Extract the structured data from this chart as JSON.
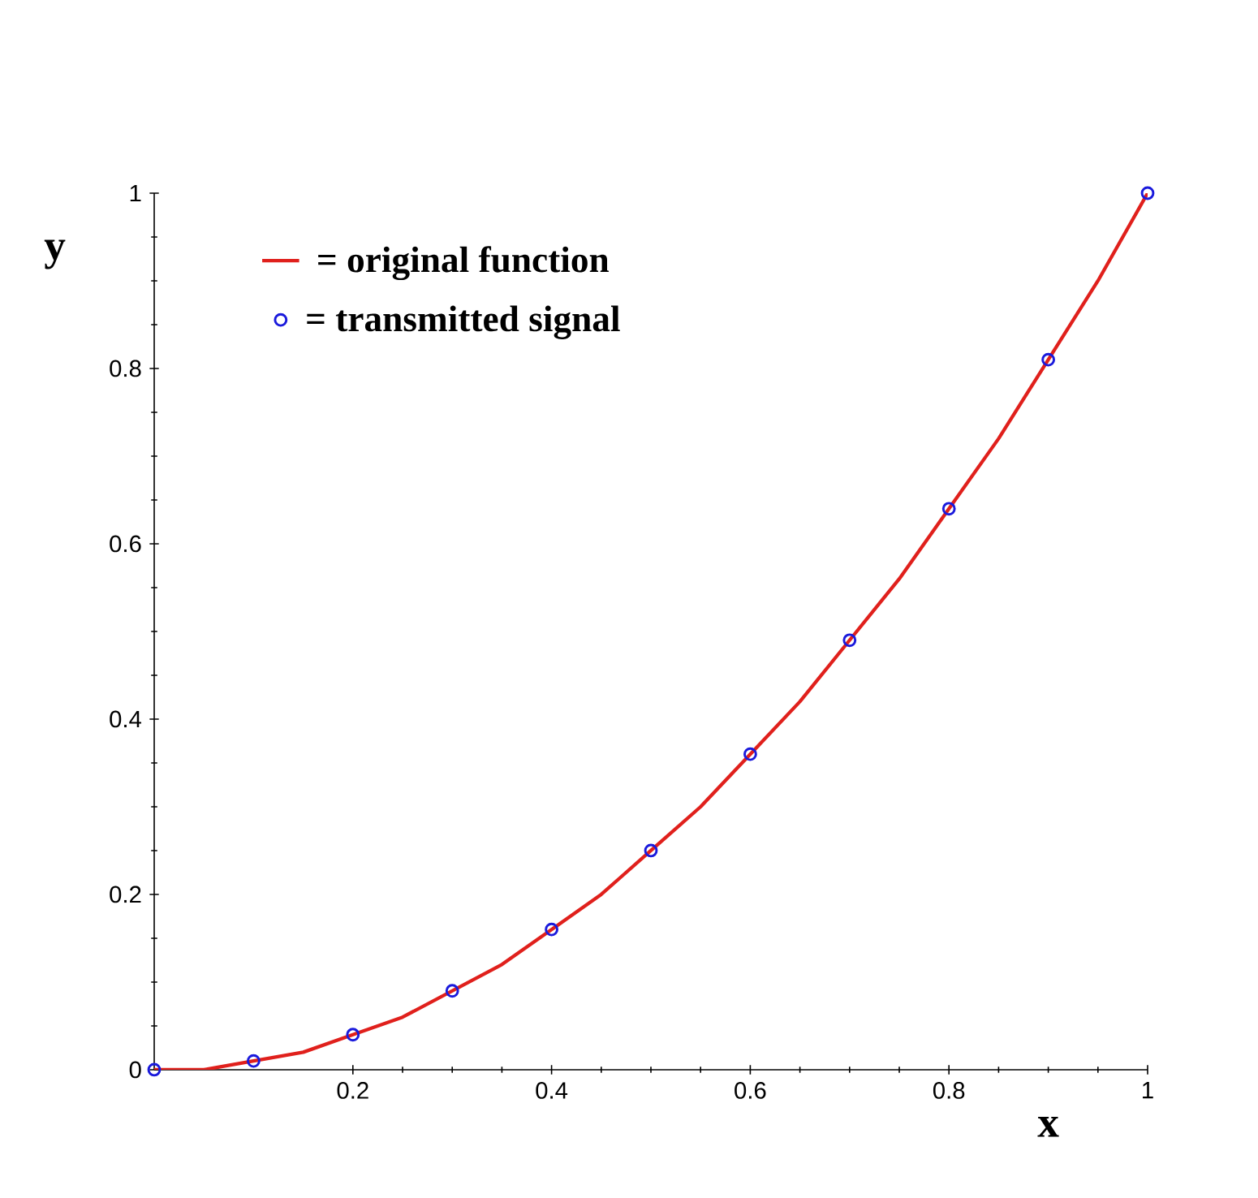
{
  "chart_data": {
    "type": "line",
    "xlabel": "x",
    "ylabel": "y",
    "xlim": [
      0,
      1
    ],
    "ylim": [
      0,
      1
    ],
    "xticks": [
      0.2,
      0.4,
      0.6,
      0.8,
      1
    ],
    "yticks": [
      0,
      0.2,
      0.4,
      0.6,
      0.8,
      1
    ],
    "grid": false,
    "legend": "top left",
    "series": [
      {
        "name": "= original function",
        "color": "#e0201c",
        "marker": "none",
        "line_style": "solid",
        "x": [
          0,
          0.05,
          0.1,
          0.15,
          0.2,
          0.25,
          0.3,
          0.35,
          0.4,
          0.45,
          0.5,
          0.55,
          0.6,
          0.65,
          0.7,
          0.75,
          0.8,
          0.85,
          0.9,
          0.95,
          1
        ],
        "values": [
          0,
          0,
          0.01,
          0.02,
          0.04,
          0.06,
          0.09,
          0.12,
          0.16,
          0.2,
          0.25,
          0.3,
          0.36,
          0.42,
          0.49,
          0.56,
          0.64,
          0.72,
          0.81,
          0.9,
          1
        ]
      },
      {
        "name": "= transmitted signal",
        "type": "scatter",
        "color": "#1a1adc",
        "marker": "circle",
        "x": [
          0,
          0.1,
          0.2,
          0.3,
          0.4,
          0.5,
          0.6,
          0.7,
          0.8,
          0.9,
          1
        ],
        "values": [
          0,
          0.01,
          0.04,
          0.09,
          0.16,
          0.25,
          0.36,
          0.49,
          0.64,
          0.81,
          1
        ]
      }
    ]
  }
}
